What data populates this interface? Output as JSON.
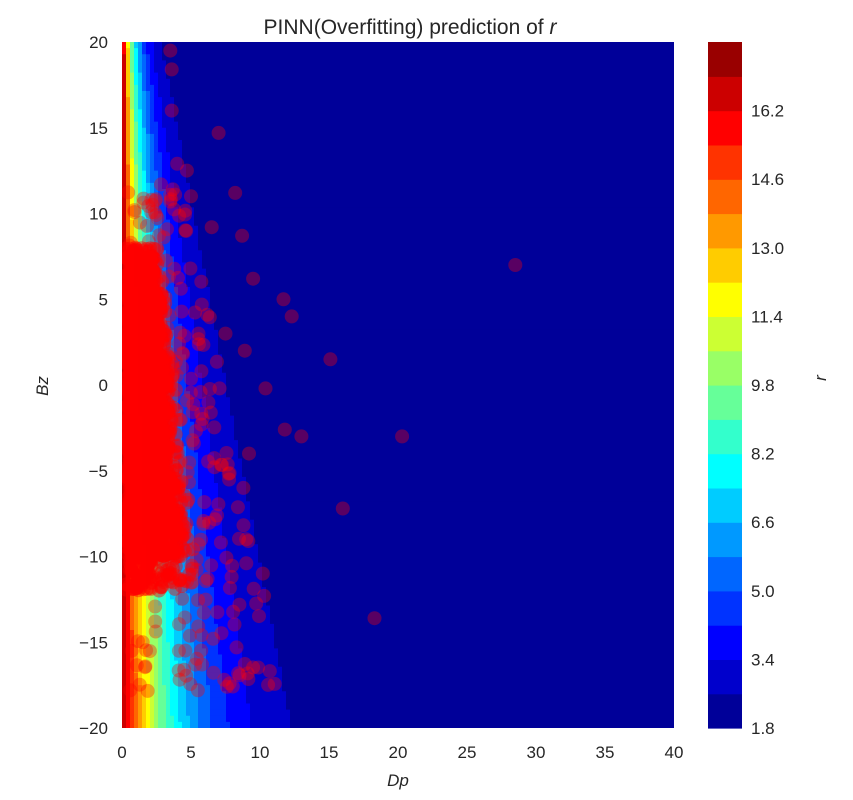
{
  "chart_data": {
    "type": "heatmap",
    "title_prefix": "PINN(Overfitting) prediction of ",
    "title_symbol": "r",
    "xlabel": "Dp",
    "ylabel": "Bz",
    "colorbar_label": "r",
    "xlim": [
      0,
      40
    ],
    "ylim": [
      -20,
      20
    ],
    "x_ticks": [
      "0",
      "5",
      "10",
      "15",
      "20",
      "25",
      "30",
      "35",
      "40"
    ],
    "y_ticks": [
      "-20",
      "-15",
      "-10",
      "-5",
      "0",
      "5",
      "10",
      "15",
      "20"
    ],
    "colorbar_range": [
      1.8,
      17.8
    ],
    "colorbar_ticks": [
      "1.8",
      "3.4",
      "5.0",
      "6.6",
      "8.2",
      "9.8",
      "11.4",
      "13.0",
      "14.6",
      "16.2"
    ],
    "colormap": "jet",
    "contour_levels": 20,
    "grid": false,
    "overlay": {
      "type": "scatter",
      "color": "#ff0000",
      "alpha": 0.35,
      "dense_core": {
        "dp_range": [
          0.2,
          4.5
        ],
        "bz_range": [
          -12,
          8
        ]
      },
      "outliers": [
        {
          "x": 28.5,
          "y": 7.0
        },
        {
          "x": 20.3,
          "y": -3.0
        },
        {
          "x": 16.0,
          "y": -7.2
        },
        {
          "x": 18.3,
          "y": -13.6
        },
        {
          "x": 10.2,
          "y": -11.0
        },
        {
          "x": 10.3,
          "y": -12.3
        },
        {
          "x": 12.3,
          "y": 4.0
        },
        {
          "x": 11.8,
          "y": -2.6
        },
        {
          "x": 13.0,
          "y": -3.0
        },
        {
          "x": 15.1,
          "y": 1.5
        },
        {
          "x": 3.5,
          "y": 19.5
        },
        {
          "x": 3.6,
          "y": 18.4
        },
        {
          "x": 3.6,
          "y": 16.0
        },
        {
          "x": 7.0,
          "y": 14.7
        },
        {
          "x": 4.7,
          "y": 12.5
        },
        {
          "x": 8.2,
          "y": 11.2
        },
        {
          "x": 6.5,
          "y": 9.2
        },
        {
          "x": 8.7,
          "y": 8.7
        },
        {
          "x": 9.5,
          "y": 6.2
        },
        {
          "x": 11.7,
          "y": 5.0
        },
        {
          "x": 7.8,
          "y": -17.4
        },
        {
          "x": 7.6,
          "y": -17.6
        },
        {
          "x": 5.5,
          "y": -17.8
        },
        {
          "x": 5.8,
          "y": -16.3
        },
        {
          "x": 8.3,
          "y": -15.3
        },
        {
          "x": 6.6,
          "y": -14.8
        },
        {
          "x": 0.6,
          "y": -17.8
        },
        {
          "x": 0.7,
          "y": -15.5
        },
        {
          "x": 4.5,
          "y": -16.6
        },
        {
          "x": 9.0,
          "y": -9.0
        },
        {
          "x": 6.2,
          "y": -11.3
        },
        {
          "x": 8.8,
          "y": -6.0
        },
        {
          "x": 9.2,
          "y": -4.0
        },
        {
          "x": 10.4,
          "y": -0.2
        },
        {
          "x": 7.5,
          "y": 3.0
        },
        {
          "x": 8.9,
          "y": 2.0
        },
        {
          "x": 2.2,
          "y": 10.5
        },
        {
          "x": 0.9,
          "y": 10.2
        },
        {
          "x": 5.0,
          "y": 11.0
        },
        {
          "x": 4.0,
          "y": 12.9
        }
      ]
    }
  }
}
